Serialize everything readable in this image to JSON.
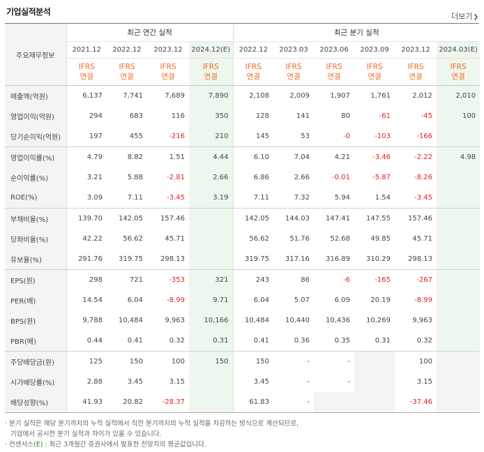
{
  "section_title": "기업실적분석",
  "more_label": "더보기",
  "table": {
    "row_header_label": "주요재무정보",
    "group_annual": "최근 연간 실적",
    "group_quarter": "최근 분기 실적",
    "annual_periods": [
      "2021.12",
      "2022.12",
      "2023.12",
      "2024.12(E)"
    ],
    "quarter_periods": [
      "2022.12",
      "2023.03",
      "2023.06",
      "2023.09",
      "2023.12",
      "2024.03(E)"
    ],
    "ifrs_top": "IFRS",
    "ifrs_bottom": "연결",
    "rows": [
      {
        "label": "매출액(억원)",
        "values": [
          "6,137",
          "7,741",
          "7,689",
          "7,890",
          "2,108",
          "2,009",
          "1,907",
          "1,761",
          "2,012",
          "2,010"
        ]
      },
      {
        "label": "영업이익(억원)",
        "values": [
          "294",
          "683",
          "116",
          "350",
          "128",
          "141",
          "80",
          "-61",
          "-45",
          "100"
        ]
      },
      {
        "label": "당기순이익(억원)",
        "values": [
          "197",
          "455",
          "-216",
          "210",
          "145",
          "53",
          "-0",
          "-103",
          "-166",
          ""
        ]
      },
      {
        "label": "영업이익률(%)",
        "values": [
          "4.79",
          "8.82",
          "1.51",
          "4.44",
          "6.10",
          "7.04",
          "4.21",
          "-3.46",
          "-2.22",
          "4.98"
        ]
      },
      {
        "label": "순이익률(%)",
        "values": [
          "3.21",
          "5.88",
          "-2.81",
          "2.66",
          "6.86",
          "2.66",
          "-0.01",
          "-5.87",
          "-8.26",
          ""
        ]
      },
      {
        "label": "ROE(%)",
        "values": [
          "3.09",
          "7.11",
          "-3.45",
          "3.19",
          "7.11",
          "7.32",
          "5.94",
          "1.54",
          "-3.45",
          ""
        ]
      },
      {
        "label": "부채비율(%)",
        "values": [
          "139.70",
          "142.05",
          "157.46",
          "",
          "142.05",
          "144.03",
          "147.41",
          "147.55",
          "157.46",
          ""
        ]
      },
      {
        "label": "당좌비율(%)",
        "values": [
          "42.22",
          "56.62",
          "45.71",
          "",
          "56.62",
          "51.76",
          "52.68",
          "49.85",
          "45.71",
          ""
        ]
      },
      {
        "label": "유보율(%)",
        "values": [
          "291.76",
          "319.75",
          "298.13",
          "",
          "319.75",
          "317.16",
          "316.89",
          "310.29",
          "298.13",
          ""
        ]
      },
      {
        "label": "EPS(원)",
        "values": [
          "298",
          "721",
          "-353",
          "321",
          "243",
          "86",
          "-6",
          "-165",
          "-267",
          ""
        ]
      },
      {
        "label": "PER(배)",
        "values": [
          "14.54",
          "6.04",
          "-8.99",
          "9.71",
          "6.04",
          "5.07",
          "6.09",
          "20.19",
          "-8.99",
          ""
        ]
      },
      {
        "label": "BPS(원)",
        "values": [
          "9,788",
          "10,484",
          "9,963",
          "10,166",
          "10,484",
          "10,440",
          "10,436",
          "10,269",
          "9,963",
          ""
        ]
      },
      {
        "label": "PBR(배)",
        "values": [
          "0.44",
          "0.41",
          "0.32",
          "0.31",
          "0.41",
          "0.36",
          "0.35",
          "0.31",
          "0.32",
          ""
        ]
      },
      {
        "label": "주당배당금(원)",
        "values": [
          "125",
          "150",
          "100",
          "150",
          "150",
          "-",
          "-",
          "",
          "100",
          ""
        ]
      },
      {
        "label": "시가배당률(%)",
        "values": [
          "2.88",
          "3.45",
          "3.15",
          "",
          "3.45",
          "-",
          "-",
          "",
          "3.15",
          ""
        ]
      },
      {
        "label": "배당성향(%)",
        "values": [
          "41.93",
          "20.82",
          "-28.37",
          "",
          "61.83",
          "-",
          "",
          "",
          "-37.46",
          ""
        ]
      }
    ]
  },
  "notes": {
    "line1": "· 분기 실적은 해당 분기까지의 누적 실적에서 직전 분기까지의 누적 실적을 차감하는 방식으로 계산되므로,",
    "line2": "기업에서 공시한 분기 실적과 차이가 있을 수 있습니다.",
    "line3_prefix": "· 컨센서스",
    "line3_e": "(E)",
    "line3_rest": " : 최근 3개월간 증권사에서 발표한 전망치의 평균값입니다."
  },
  "colors": {
    "ifrs": "#f26b22",
    "negative": "#e02020",
    "estimate_bg": "#eef7ee",
    "label_bg": "#f4f4f4"
  }
}
